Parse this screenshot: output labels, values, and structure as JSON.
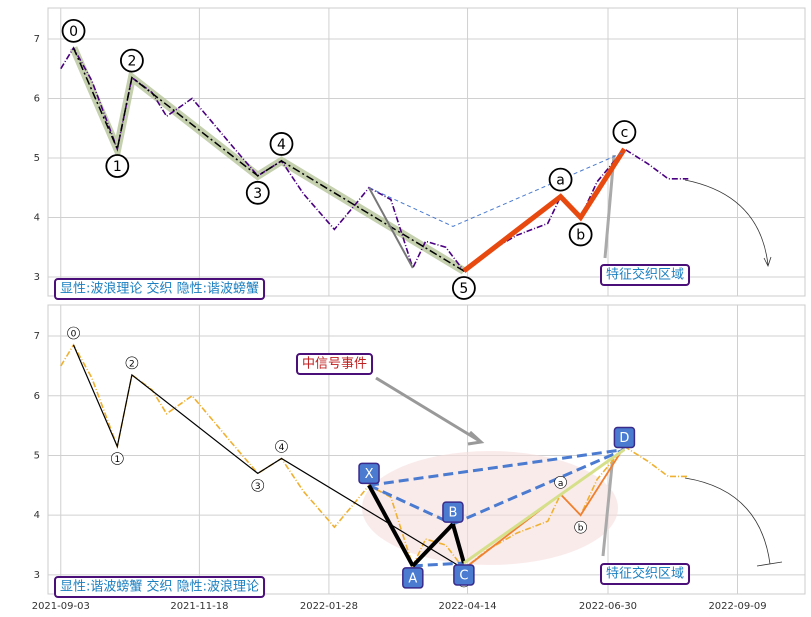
{
  "chart_data": {
    "type": "line",
    "x": [
      "2021-09-03",
      "2021-09-10",
      "2021-09-20",
      "2021-10-04",
      "2021-10-12",
      "2021-10-23",
      "2021-10-31",
      "2021-11-14",
      "2021-11-25",
      "2021-12-06",
      "2021-12-20",
      "2022-01-02",
      "2022-01-14",
      "2022-01-31",
      "2022-02-11",
      "2022-02-19",
      "2022-03-03",
      "2022-03-15",
      "2022-03-22",
      "2022-04-02",
      "2022-04-12",
      "2022-04-24",
      "2022-05-11",
      "2022-05-28",
      "2022-06-04",
      "2022-06-15",
      "2022-06-24",
      "2022-07-09",
      "2022-07-22",
      "2022-08-02",
      "2022-08-13"
    ],
    "values": [
      6.5,
      6.85,
      6.3,
      5.15,
      6.35,
      6.1,
      5.7,
      6.0,
      5.6,
      5.2,
      4.7,
      4.95,
      4.4,
      3.8,
      4.2,
      4.5,
      4.3,
      3.15,
      3.6,
      3.5,
      3.1,
      3.4,
      3.7,
      3.9,
      4.35,
      4.0,
      4.6,
      5.15,
      4.9,
      4.65,
      4.65
    ],
    "xlim": [
      "2021-08-27",
      "2022-10-16"
    ],
    "xticks": [
      "2021-09-03",
      "2021-11-18",
      "2022-01-28",
      "2022-04-14",
      "2022-06-30",
      "2022-09-09"
    ],
    "ylim": [
      2.68,
      7.52
    ],
    "yticks": [
      3,
      4,
      5,
      6,
      7
    ],
    "grid": true,
    "waves": [
      {
        "label": "0",
        "x": "2021-09-10",
        "value": 6.85
      },
      {
        "label": "1",
        "x": "2021-10-04",
        "value": 5.15
      },
      {
        "label": "2",
        "x": "2021-10-12",
        "value": 6.35
      },
      {
        "label": "3",
        "x": "2021-12-20",
        "value": 4.7
      },
      {
        "label": "4",
        "x": "2022-01-02",
        "value": 4.95
      },
      {
        "label": "5",
        "x": "2022-04-12",
        "value": 3.1
      },
      {
        "label": "a",
        "x": "2022-06-04",
        "value": 4.35
      },
      {
        "label": "b",
        "x": "2022-06-15",
        "value": 4.0
      },
      {
        "label": "c",
        "x": "2022-07-09",
        "value": 5.15
      }
    ],
    "harmonic": [
      {
        "label": "X",
        "x": "2022-02-19",
        "value": 4.5
      },
      {
        "label": "A",
        "x": "2022-03-15",
        "value": 3.15
      },
      {
        "label": "B",
        "x": "2022-04-06",
        "value": 3.85
      },
      {
        "label": "C",
        "x": "2022-04-12",
        "value": 3.2
      },
      {
        "label": "D",
        "x": "2022-07-09",
        "value": 5.1
      }
    ],
    "panels": [
      {
        "label": "显性:波浪理论 交织 隐性:谐波螃蟹",
        "zone_label": "特征交织区域",
        "color": "#4b0082"
      },
      {
        "label": "显性:谐波螃蟹 交织 隐性:波浪理论",
        "zone_label": "特征交织区域",
        "color": "#f0b030"
      }
    ],
    "signal_label": "中信号事件"
  }
}
